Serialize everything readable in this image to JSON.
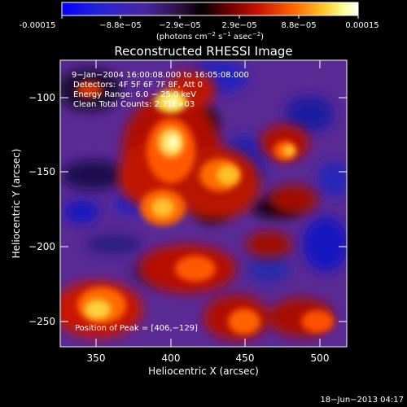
{
  "colorbar": {
    "tick_labels": [
      "-0.00015",
      "−8.8e−05",
      "−2.9e−05",
      "2.9e−05",
      "8.8e−05",
      "0.00015"
    ],
    "units": {
      "prefix": "(photons cm",
      "exp1": "−2",
      "mid": " s",
      "exp2": "−1",
      "mid2": " asec",
      "exp3": "−2",
      "suffix": ")"
    },
    "colormap": [
      "#0000ff",
      "#2020d0",
      "#40209a",
      "#3a1450",
      "#000000",
      "#5a0000",
      "#c01000",
      "#ff6000",
      "#ffc020",
      "#ffff80",
      "#ffffff"
    ]
  },
  "title": "Reconstructed RHESSI Image",
  "annotations": {
    "time_range": "9−Jan−2004 16:00:08.000 to 16:05:08.000",
    "detectors": "Detectors: 4F 5F 6F 7F 8F, Att 0",
    "energy_range": "Energy Range: 6.0 − 25.0 keV",
    "clean_counts": "Clean      Total Counts: 2.71E+03",
    "peak_position": "Position of Peak = [406,−129]"
  },
  "axes": {
    "x_label": "Heliocentric X (arcsec)",
    "y_label": "Heliocentric Y (arcsec)",
    "x_ticks": [
      "350",
      "400",
      "450",
      "500"
    ],
    "y_ticks": [
      "−100",
      "−150",
      "−200",
      "−250"
    ]
  },
  "footer": {
    "timestamp": "18−Jun−2013 04:17"
  }
}
